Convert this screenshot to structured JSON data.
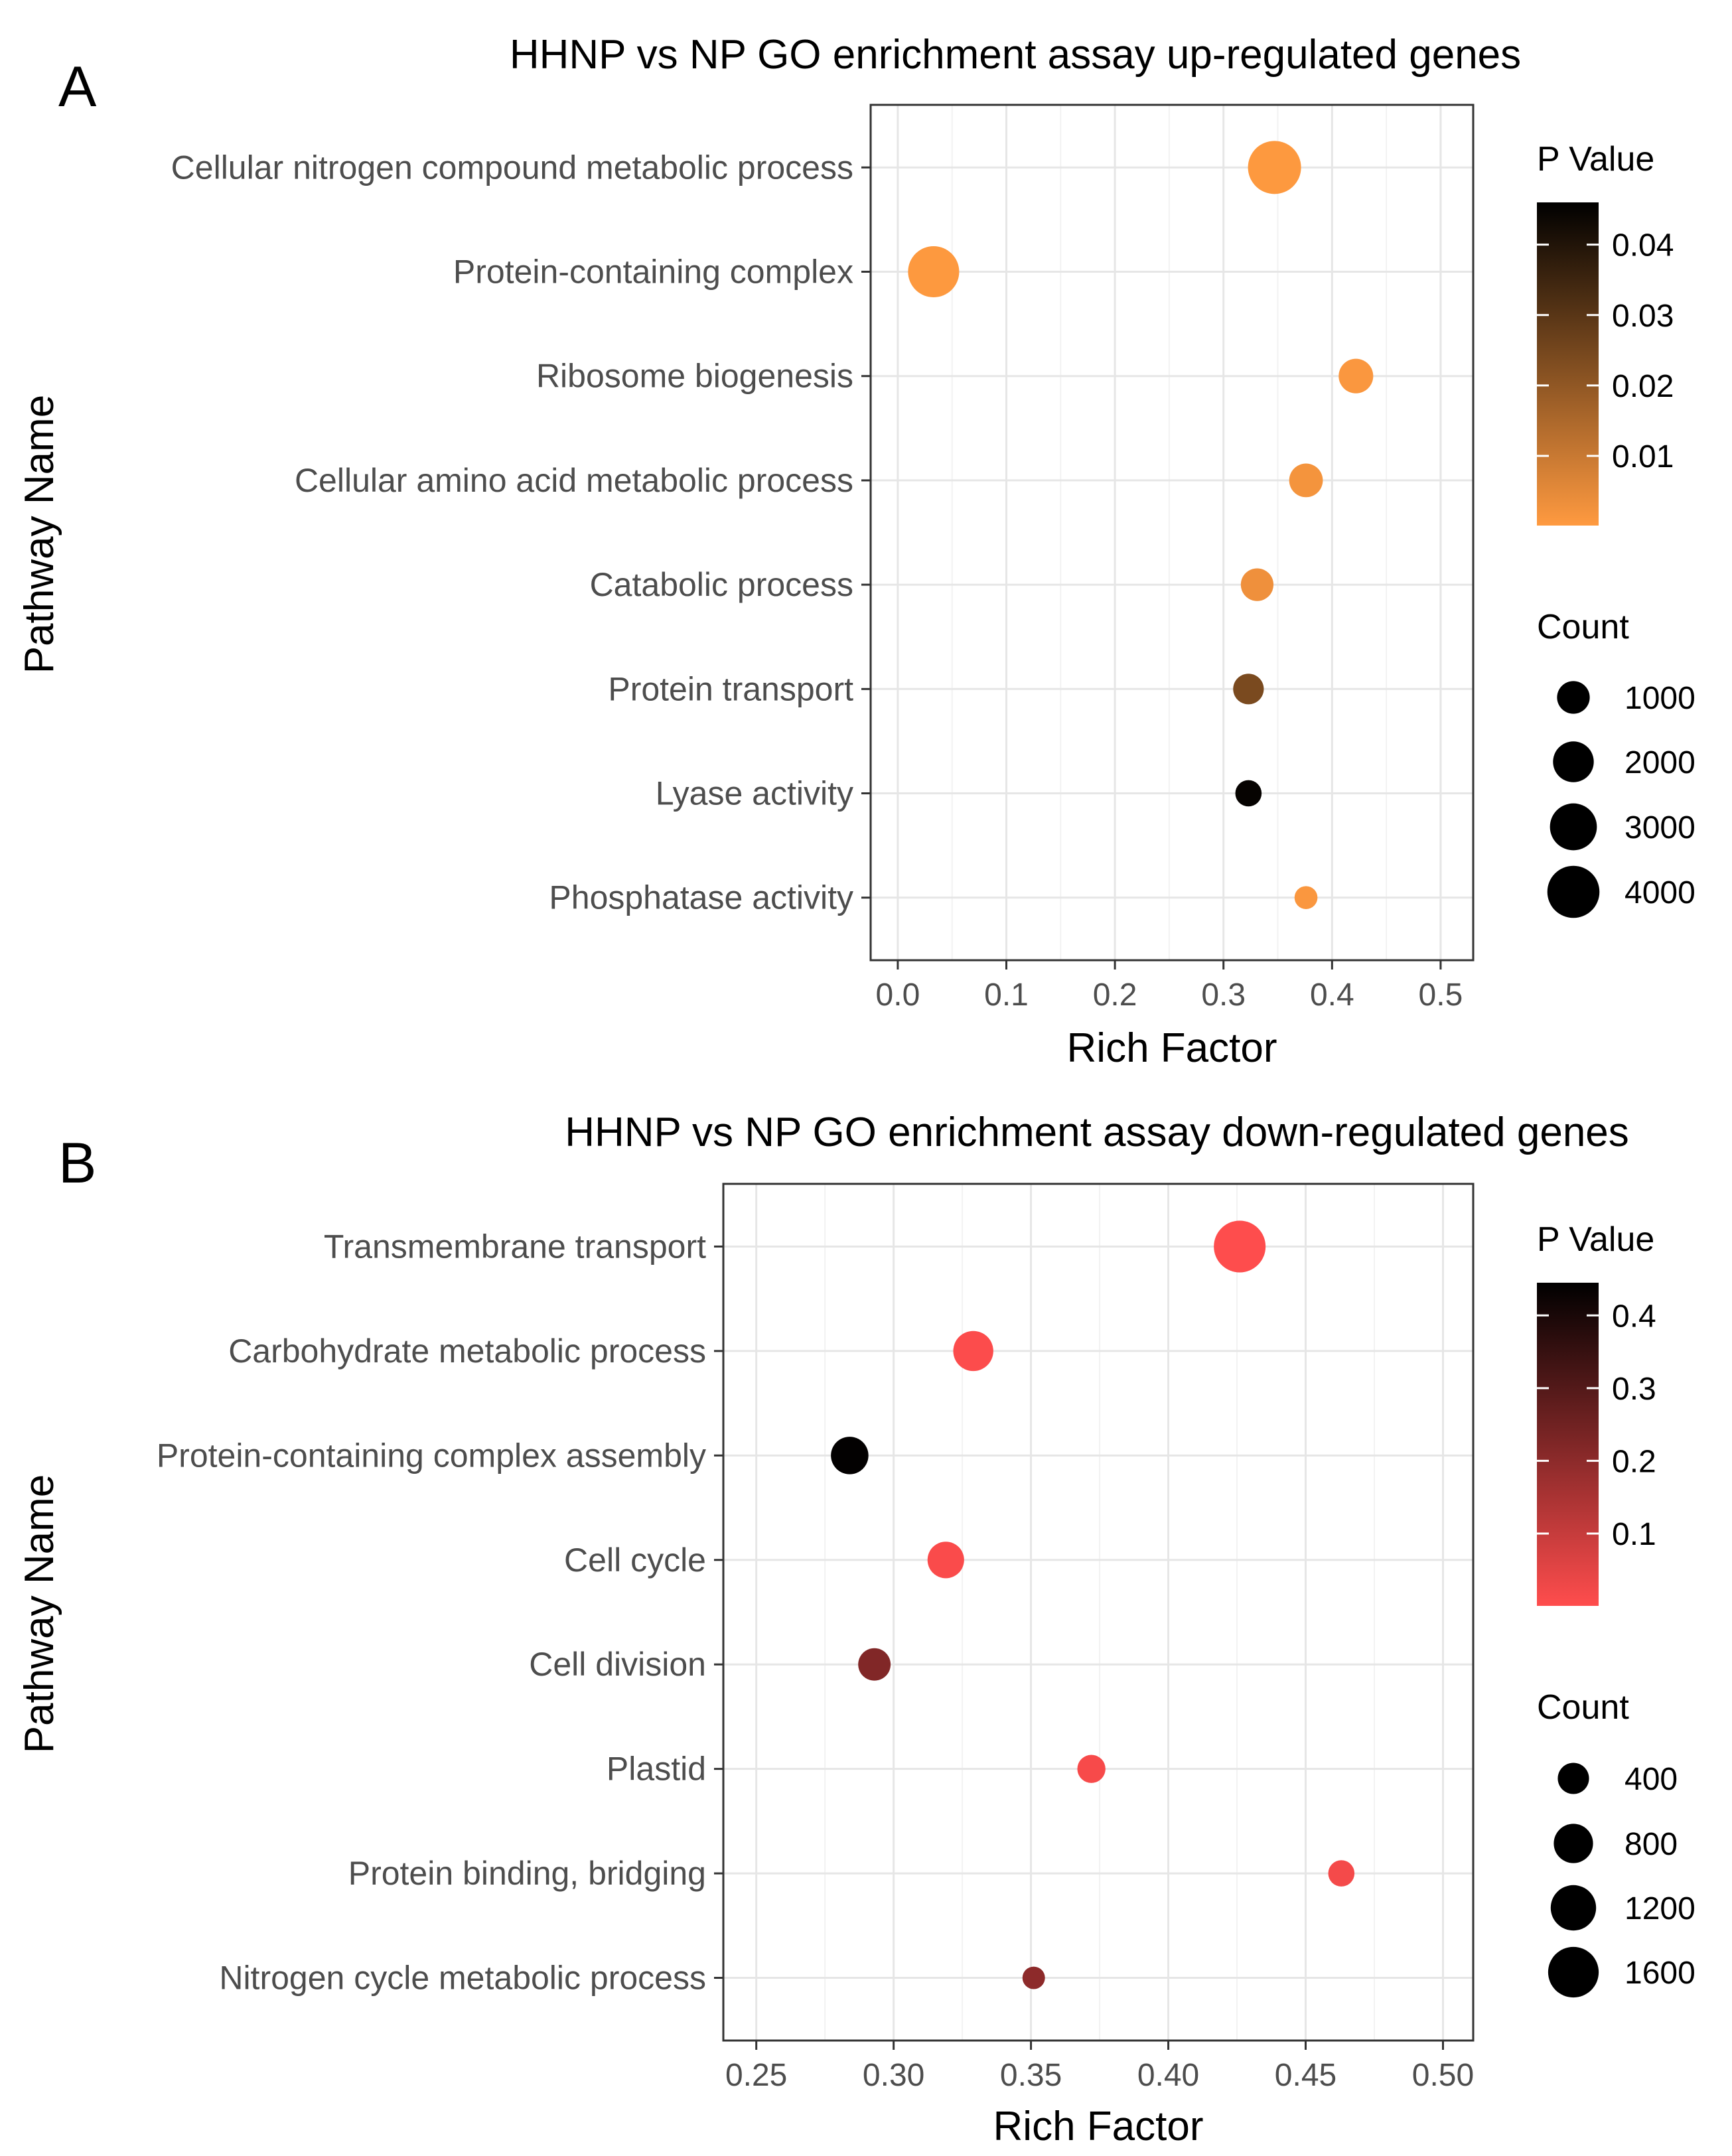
{
  "chart_data": [
    {
      "type": "scatter",
      "panel_label": "A",
      "title": "HHNP vs NP GO enrichment assay up-regulated genes",
      "xlabel": "Rich Factor",
      "ylabel": "Pathway Name",
      "xlim": [
        -0.025,
        0.53
      ],
      "x_ticks": [
        0.0,
        0.1,
        0.2,
        0.3,
        0.4,
        0.5
      ],
      "x_tick_labels": [
        "0.0",
        "0.1",
        "0.2",
        "0.3",
        "0.4",
        "0.5"
      ],
      "grid": true,
      "categories": [
        "Cellular nitrogen compound metabolic process",
        "Protein-containing complex",
        "Ribosome biogenesis",
        "Cellular amino acid metabolic process",
        "Catabolic process",
        "Protein transport",
        "Lyase activity",
        "Phosphatase activity"
      ],
      "points": [
        {
          "pathway": "Cellular nitrogen compound metabolic process",
          "rich_factor": 0.347,
          "count": 4200,
          "p_value": 0.0005
        },
        {
          "pathway": "Protein-containing complex",
          "rich_factor": 0.033,
          "count": 3800,
          "p_value": 0.0005
        },
        {
          "pathway": "Ribosome biogenesis",
          "rich_factor": 0.422,
          "count": 1200,
          "p_value": 0.001
        },
        {
          "pathway": "Cellular amino acid metabolic process",
          "rich_factor": 0.376,
          "count": 1100,
          "p_value": 0.002
        },
        {
          "pathway": "Catabolic process",
          "rich_factor": 0.331,
          "count": 1000,
          "p_value": 0.003
        },
        {
          "pathway": "Protein transport",
          "rich_factor": 0.323,
          "count": 800,
          "p_value": 0.024
        },
        {
          "pathway": "Lyase activity",
          "rich_factor": 0.323,
          "count": 450,
          "p_value": 0.045
        },
        {
          "pathway": "Phosphatase activity",
          "rich_factor": 0.376,
          "count": 250,
          "p_value": 0.001
        }
      ],
      "color_legend": {
        "title": "P Value",
        "ticks": [
          0.04,
          0.03,
          0.02,
          0.01
        ],
        "tick_labels": [
          "0.04",
          "0.03",
          "0.02",
          "0.01"
        ],
        "range": [
          0.0001,
          0.046
        ],
        "low_color": "#ff9a40",
        "high_color": "#000000"
      },
      "size_legend": {
        "title": "Count",
        "values": [
          1000,
          2000,
          3000,
          4000
        ],
        "labels": [
          "1000",
          "2000",
          "3000",
          "4000"
        ]
      }
    },
    {
      "type": "scatter",
      "panel_label": "B",
      "title": "HHNP vs NP GO enrichment assay down-regulated genes",
      "xlabel": "Rich Factor",
      "ylabel": "Pathway Name",
      "xlim": [
        0.238,
        0.511
      ],
      "x_ticks": [
        0.25,
        0.3,
        0.35,
        0.4,
        0.45,
        0.5
      ],
      "x_tick_labels": [
        "0.25",
        "0.30",
        "0.35",
        "0.40",
        "0.45",
        "0.50"
      ],
      "grid": true,
      "categories": [
        "Transmembrane transport",
        "Carbohydrate metabolic process",
        "Protein-containing complex assembly",
        "Cell cycle",
        "Cell division",
        "Plastid",
        "Protein binding, bridging",
        "Nitrogen cycle metabolic process"
      ],
      "points": [
        {
          "pathway": "Transmembrane transport",
          "rich_factor": 0.426,
          "count": 1700,
          "p_value": 0.002
        },
        {
          "pathway": "Carbohydrate metabolic process",
          "rich_factor": 0.329,
          "count": 850,
          "p_value": 0.005
        },
        {
          "pathway": "Protein-containing complex assembly",
          "rich_factor": 0.284,
          "count": 700,
          "p_value": 0.44
        },
        {
          "pathway": "Cell cycle",
          "rich_factor": 0.319,
          "count": 650,
          "p_value": 0.01
        },
        {
          "pathway": "Cell division",
          "rich_factor": 0.293,
          "count": 450,
          "p_value": 0.22
        },
        {
          "pathway": "Plastid",
          "rich_factor": 0.372,
          "count": 280,
          "p_value": 0.015
        },
        {
          "pathway": "Protein binding, bridging",
          "rich_factor": 0.463,
          "count": 220,
          "p_value": 0.02
        },
        {
          "pathway": "Nitrogen cycle metabolic process",
          "rich_factor": 0.351,
          "count": 120,
          "p_value": 0.2
        }
      ],
      "color_legend": {
        "title": "P Value",
        "ticks": [
          0.4,
          0.3,
          0.2,
          0.1
        ],
        "tick_labels": [
          "0.4",
          "0.3",
          "0.2",
          "0.1"
        ],
        "range": [
          0.0005,
          0.445
        ],
        "low_color": "#ff4d4d",
        "high_color": "#000000"
      },
      "size_legend": {
        "title": "Count",
        "values": [
          400,
          800,
          1200,
          1600
        ],
        "labels": [
          "400",
          "800",
          "1200",
          "1600"
        ]
      }
    }
  ]
}
